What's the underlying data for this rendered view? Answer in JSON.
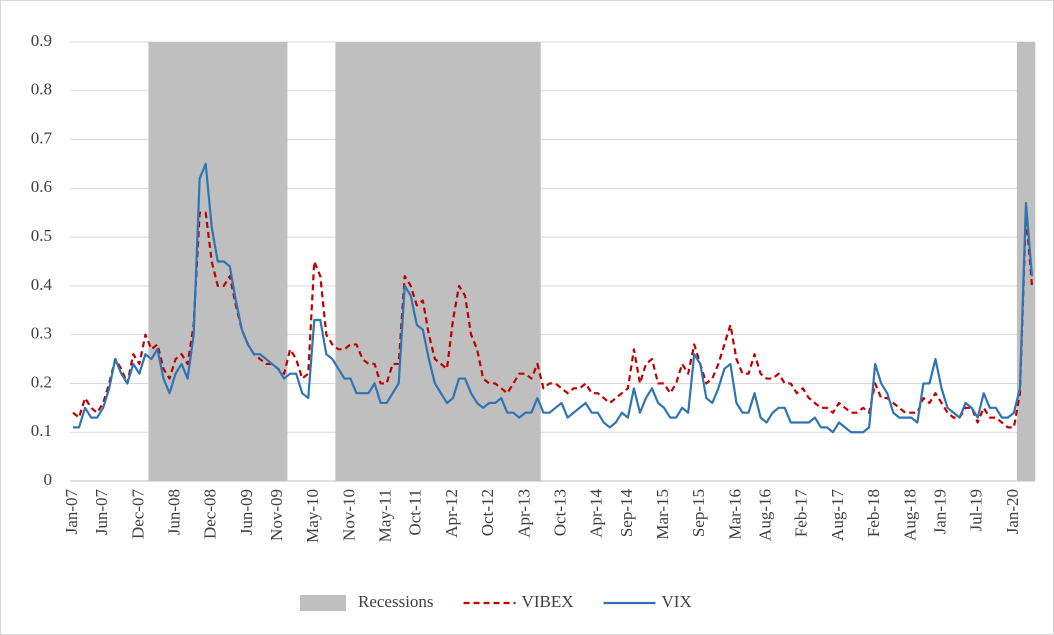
{
  "chart_data": {
    "type": "line",
    "categories": [
      "Jan-07",
      null,
      null,
      null,
      null,
      "Jun-07",
      null,
      null,
      null,
      null,
      null,
      "Dec-07",
      null,
      null,
      null,
      null,
      null,
      "Jun-08",
      null,
      null,
      null,
      null,
      null,
      "Dec-08",
      null,
      null,
      null,
      null,
      null,
      "Jun-09",
      null,
      null,
      null,
      null,
      "Nov-09",
      null,
      null,
      null,
      null,
      null,
      "May-10",
      null,
      null,
      null,
      null,
      null,
      "Nov-10",
      null,
      null,
      null,
      null,
      null,
      "May-11",
      null,
      null,
      null,
      null,
      "Oct-11",
      null,
      null,
      null,
      null,
      null,
      "Apr-12",
      null,
      null,
      null,
      null,
      null,
      "Oct-12",
      null,
      null,
      null,
      null,
      null,
      "Apr-13",
      null,
      null,
      null,
      null,
      null,
      "Oct-13",
      null,
      null,
      null,
      null,
      null,
      "Apr-14",
      null,
      null,
      null,
      null,
      "Sep-14",
      null,
      null,
      null,
      null,
      null,
      "Mar-15",
      null,
      null,
      null,
      null,
      null,
      "Sep-15",
      null,
      null,
      null,
      null,
      null,
      "Mar-16",
      null,
      null,
      null,
      null,
      "Aug-16",
      null,
      null,
      null,
      null,
      null,
      "Feb-17",
      null,
      null,
      null,
      null,
      null,
      "Aug-17",
      null,
      null,
      null,
      null,
      null,
      "Feb-18",
      null,
      null,
      null,
      null,
      null,
      "Aug-18",
      null,
      null,
      null,
      null,
      "Jan-19",
      null,
      null,
      null,
      null,
      null,
      "Jul-19",
      null,
      null,
      null,
      null,
      null,
      "Jan-20",
      null,
      null,
      null
    ],
    "series": [
      {
        "name": "Recessions",
        "type": "bar",
        "color": "#bfbfbf",
        "values": [
          null,
          null,
          null,
          null,
          null,
          null,
          null,
          null,
          null,
          null,
          null,
          null,
          null,
          0.9,
          0.9,
          0.9,
          0.9,
          0.9,
          0.9,
          0.9,
          0.9,
          0.9,
          0.9,
          0.9,
          0.9,
          0.9,
          0.9,
          0.9,
          0.9,
          0.9,
          0.9,
          0.9,
          0.9,
          0.9,
          0.9,
          0.9,
          null,
          null,
          null,
          null,
          null,
          null,
          null,
          null,
          0.9,
          0.9,
          0.9,
          0.9,
          0.9,
          0.9,
          0.9,
          0.9,
          0.9,
          0.9,
          0.9,
          0.9,
          0.9,
          0.9,
          0.9,
          0.9,
          0.9,
          0.9,
          0.9,
          0.9,
          0.9,
          0.9,
          0.9,
          0.9,
          0.9,
          0.9,
          0.9,
          0.9,
          0.9,
          0.9,
          0.9,
          0.9,
          0.9,
          0.9,
          null,
          null,
          null,
          null,
          null,
          null,
          null,
          null,
          null,
          null,
          null,
          null,
          null,
          null,
          null,
          null,
          null,
          null,
          null,
          null,
          null,
          null,
          null,
          null,
          null,
          null,
          null,
          null,
          null,
          null,
          null,
          null,
          null,
          null,
          null,
          null,
          null,
          null,
          null,
          null,
          null,
          null,
          null,
          null,
          null,
          null,
          null,
          null,
          null,
          null,
          null,
          null,
          null,
          null,
          null,
          null,
          null,
          null,
          null,
          null,
          null,
          null,
          null,
          null,
          null,
          null,
          null,
          null,
          null,
          null,
          null,
          null,
          null,
          null,
          null,
          null,
          null,
          null,
          null,
          0.9,
          0.9,
          0.9
        ]
      },
      {
        "name": "VIBEX",
        "type": "line",
        "dashed": true,
        "color": "#c00000",
        "values": [
          0.14,
          0.13,
          0.17,
          0.15,
          0.14,
          0.16,
          0.2,
          0.25,
          0.23,
          0.2,
          0.26,
          0.24,
          0.3,
          0.27,
          0.28,
          0.23,
          0.21,
          0.25,
          0.26,
          0.24,
          0.32,
          0.55,
          0.55,
          0.45,
          0.4,
          0.4,
          0.42,
          0.36,
          0.31,
          0.28,
          0.26,
          0.25,
          0.24,
          0.24,
          0.23,
          0.22,
          0.27,
          0.25,
          0.21,
          0.22,
          0.45,
          0.42,
          0.3,
          0.28,
          0.27,
          0.27,
          0.28,
          0.28,
          0.25,
          0.24,
          0.24,
          0.2,
          0.2,
          0.24,
          0.24,
          0.42,
          0.4,
          0.36,
          0.37,
          0.3,
          0.25,
          0.24,
          0.23,
          0.33,
          0.4,
          0.38,
          0.3,
          0.27,
          0.21,
          0.2,
          0.2,
          0.19,
          0.18,
          0.2,
          0.22,
          0.22,
          0.21,
          0.24,
          0.19,
          0.2,
          0.2,
          0.19,
          0.18,
          0.19,
          0.19,
          0.2,
          0.18,
          0.18,
          0.17,
          0.16,
          0.17,
          0.18,
          0.19,
          0.27,
          0.2,
          0.24,
          0.25,
          0.2,
          0.2,
          0.18,
          0.2,
          0.24,
          0.22,
          0.28,
          0.24,
          0.2,
          0.21,
          0.24,
          0.28,
          0.32,
          0.25,
          0.22,
          0.22,
          0.26,
          0.22,
          0.21,
          0.21,
          0.22,
          0.2,
          0.2,
          0.18,
          0.19,
          0.17,
          0.16,
          0.15,
          0.15,
          0.14,
          0.16,
          0.15,
          0.14,
          0.14,
          0.15,
          0.14,
          0.2,
          0.17,
          0.17,
          0.16,
          0.15,
          0.14,
          0.14,
          0.14,
          0.17,
          0.16,
          0.18,
          0.16,
          0.14,
          0.13,
          0.13,
          0.15,
          0.15,
          0.12,
          0.15,
          0.13,
          0.13,
          0.12,
          0.11,
          0.11,
          0.18,
          0.55,
          0.4
        ]
      },
      {
        "name": "VIX",
        "type": "line",
        "color": "#2e75b6",
        "values": [
          0.11,
          0.11,
          0.15,
          0.13,
          0.13,
          0.15,
          0.19,
          0.25,
          0.22,
          0.2,
          0.24,
          0.22,
          0.26,
          0.25,
          0.27,
          0.21,
          0.18,
          0.22,
          0.24,
          0.21,
          0.3,
          0.62,
          0.65,
          0.52,
          0.45,
          0.45,
          0.44,
          0.37,
          0.31,
          0.28,
          0.26,
          0.26,
          0.25,
          0.24,
          0.23,
          0.21,
          0.22,
          0.22,
          0.18,
          0.17,
          0.33,
          0.33,
          0.26,
          0.25,
          0.23,
          0.21,
          0.21,
          0.18,
          0.18,
          0.18,
          0.2,
          0.16,
          0.16,
          0.18,
          0.2,
          0.4,
          0.38,
          0.32,
          0.31,
          0.25,
          0.2,
          0.18,
          0.16,
          0.17,
          0.21,
          0.21,
          0.18,
          0.16,
          0.15,
          0.16,
          0.16,
          0.17,
          0.14,
          0.14,
          0.13,
          0.14,
          0.14,
          0.17,
          0.14,
          0.14,
          0.15,
          0.16,
          0.13,
          0.14,
          0.15,
          0.16,
          0.14,
          0.14,
          0.12,
          0.11,
          0.12,
          0.14,
          0.13,
          0.19,
          0.14,
          0.17,
          0.19,
          0.16,
          0.15,
          0.13,
          0.13,
          0.15,
          0.14,
          0.26,
          0.24,
          0.17,
          0.16,
          0.19,
          0.23,
          0.24,
          0.16,
          0.14,
          0.14,
          0.18,
          0.13,
          0.12,
          0.14,
          0.15,
          0.15,
          0.12,
          0.12,
          0.12,
          0.12,
          0.13,
          0.11,
          0.11,
          0.1,
          0.12,
          0.11,
          0.1,
          0.1,
          0.1,
          0.11,
          0.24,
          0.2,
          0.18,
          0.14,
          0.13,
          0.13,
          0.13,
          0.12,
          0.2,
          0.2,
          0.25,
          0.19,
          0.15,
          0.14,
          0.13,
          0.16,
          0.15,
          0.13,
          0.18,
          0.15,
          0.15,
          0.13,
          0.13,
          0.14,
          0.19,
          0.57,
          0.42
        ]
      }
    ],
    "ylim": [
      0,
      0.9
    ],
    "yticks": [
      0,
      0.1,
      0.2,
      0.3,
      0.4,
      0.5,
      0.6,
      0.7,
      0.8,
      0.9
    ],
    "grid": true,
    "legend": "bottom"
  }
}
